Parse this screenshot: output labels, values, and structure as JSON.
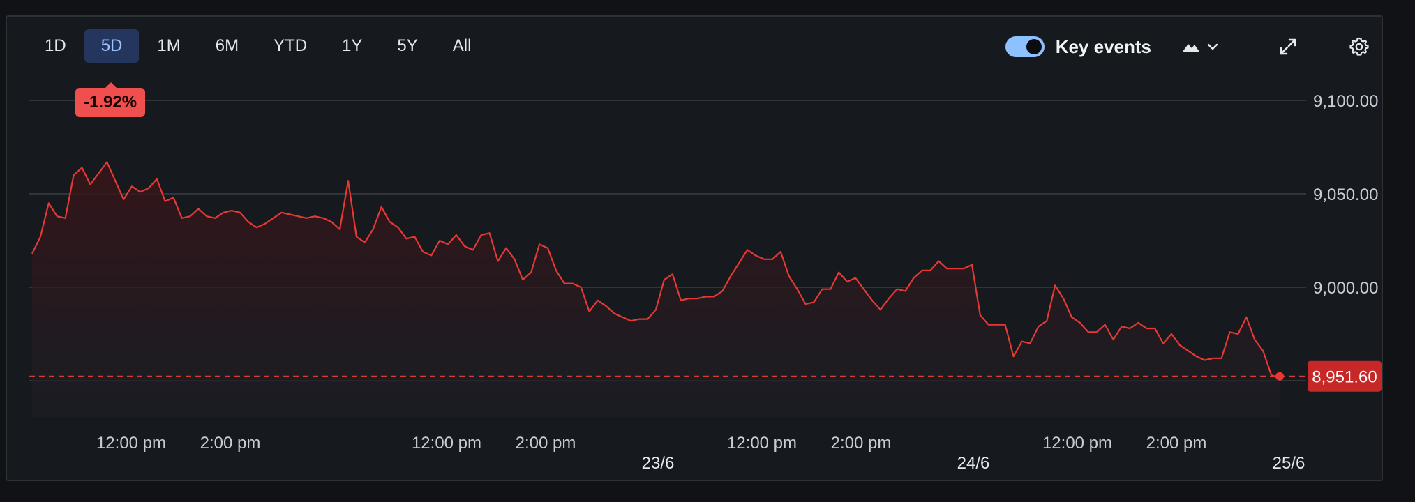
{
  "ranges": [
    "1D",
    "5D",
    "1M",
    "6M",
    "YTD",
    "1Y",
    "5Y",
    "All"
  ],
  "active_range": "5D",
  "change_badge": "-1.92%",
  "toolbar": {
    "key_events_label": "Key events",
    "key_events_on": true,
    "chart_type_icon": "mountain-area-icon",
    "expand_icon": "expand-icon",
    "settings_icon": "gear-icon"
  },
  "colors": {
    "line": "#e53935",
    "badge": "#f0504d",
    "last_price_bg": "#c62828",
    "accent_active": "#9cc3ff"
  },
  "chart_data": {
    "type": "area",
    "ylim": [
      8930,
      9100
    ],
    "y_ticks": [
      "9,100.00",
      "9,050.00",
      "9,000.00"
    ],
    "y_tick_values": [
      9100,
      9050,
      9000,
      8950
    ],
    "last_price_label": "8,951.60",
    "last_price": 8951.6,
    "x_tick_labels": [
      {
        "label": "12:00 pm",
        "day": 0,
        "frac": 0.32
      },
      {
        "label": "2:00 pm",
        "day": 0,
        "frac": 0.64
      },
      {
        "label": "12:00 pm",
        "day": 1,
        "frac": 0.32
      },
      {
        "label": "2:00 pm",
        "day": 1,
        "frac": 0.64
      },
      {
        "label": "12:00 pm",
        "day": 2,
        "frac": 0.32
      },
      {
        "label": "2:00 pm",
        "day": 2,
        "frac": 0.64
      },
      {
        "label": "12:00 pm",
        "day": 3,
        "frac": 0.32
      },
      {
        "label": "2:00 pm",
        "day": 3,
        "frac": 0.64
      }
    ],
    "date_labels": [
      {
        "label": "23/6",
        "day": 1
      },
      {
        "label": "24/6",
        "day": 2
      },
      {
        "label": "25/6",
        "day": 3
      }
    ],
    "values": [
      9018,
      9027,
      9045,
      9038,
      9037,
      9060,
      9064,
      9055,
      9061,
      9067,
      9057,
      9047,
      9054,
      9051,
      9053,
      9058,
      9046,
      9048,
      9037,
      9038,
      9042,
      9038,
      9037,
      9040,
      9041,
      9040,
      9035,
      9032,
      9034,
      9037,
      9040,
      9039,
      9038,
      9037,
      9038,
      9037,
      9035,
      9031,
      9057,
      9027,
      9024,
      9031,
      9043,
      9035,
      9032,
      9026,
      9027,
      9019,
      9017,
      9025,
      9023,
      9028,
      9022,
      9020,
      9028,
      9029,
      9014,
      9021,
      9015,
      9004,
      9008,
      9023,
      9021,
      9009,
      9002,
      9002,
      9000,
      8987,
      8993,
      8990,
      8986,
      8984,
      8982,
      8983,
      8983,
      8988,
      9004,
      9007,
      8993,
      8994,
      8994,
      8995,
      8995,
      8998,
      9006,
      9013,
      9020,
      9017,
      9015,
      9015,
      9019,
      9006,
      8999,
      8991,
      8992,
      8999,
      8999,
      9008,
      9003,
      9005,
      8999,
      8993,
      8988,
      8994,
      8999,
      8998,
      9005,
      9009,
      9009,
      9014,
      9010,
      9010,
      9010,
      9012,
      8985,
      8980,
      8980,
      8980,
      8963,
      8971,
      8970,
      8979,
      8982,
      9001,
      8994,
      8984,
      8981,
      8976,
      8976,
      8980,
      8972,
      8979,
      8978,
      8981,
      8978,
      8978,
      8970,
      8975,
      8969,
      8966,
      8963,
      8961,
      8962,
      8962,
      8976,
      8975,
      8984,
      8972,
      8966,
      8953,
      8951.6
    ]
  }
}
